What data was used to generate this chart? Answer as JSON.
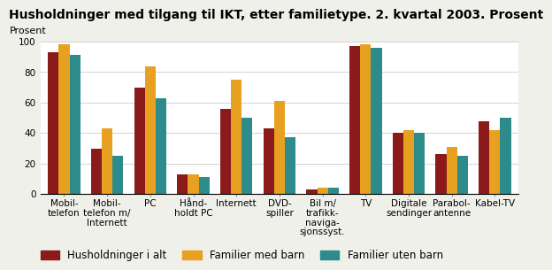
{
  "title": "Husholdninger med tilgang til IKT, etter familietype. 2. kvartal 2003. Prosent",
  "ylabel": "Prosent",
  "ylim": [
    0,
    100
  ],
  "yticks": [
    0,
    20,
    40,
    60,
    80,
    100
  ],
  "categories": [
    "Mobil-\ntelefon",
    "Mobil-\ntelefon m/\nInternett",
    "PC",
    "Hånd-\nholdt PC",
    "Internett",
    "DVD-\nspiller",
    "Bil m/\ntrafikk-\nnaviga-\nsjonssyst.",
    "TV",
    "Digitale\nsendinger",
    "Parabol-\nantenne",
    "Kabel-TV"
  ],
  "series": {
    "Husholdninger i alt": [
      93,
      30,
      70,
      13,
      56,
      43,
      3,
      97,
      40,
      26,
      48
    ],
    "Familier med barn": [
      98,
      43,
      84,
      13,
      75,
      61,
      4,
      98,
      42,
      31,
      42
    ],
    "Familier uten barn": [
      91,
      25,
      63,
      11,
      50,
      37,
      4,
      96,
      40,
      25,
      50
    ]
  },
  "colors": {
    "Husholdninger i alt": "#8B1A1A",
    "Familier med barn": "#E8A020",
    "Familier uten barn": "#2E8B8B"
  },
  "background_color": "#F0F0EB",
  "plot_background": "#FFFFFF",
  "title_fontsize": 10,
  "axis_label_fontsize": 8,
  "tick_fontsize": 7.5,
  "legend_fontsize": 8.5,
  "bar_width": 0.25
}
